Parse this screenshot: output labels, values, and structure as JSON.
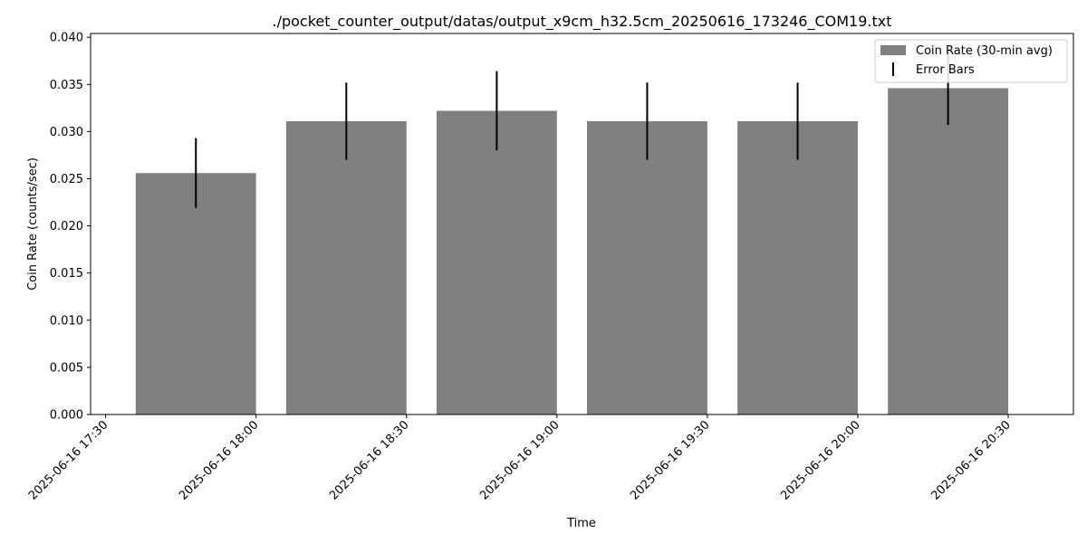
{
  "chart_data": {
    "type": "bar",
    "title": "./pocket_counter_output/datas/output_x9cm_h32.5cm_20250616_173246_COM19.txt",
    "xlabel": "Time",
    "ylabel": "Coin Rate (counts/sec)",
    "ylim": [
      0,
      0.0404
    ],
    "xlim": [
      "2025-06-16 17:27",
      "2025-06-16 20:43"
    ],
    "yticks": [
      "0.000",
      "0.005",
      "0.010",
      "0.015",
      "0.020",
      "0.025",
      "0.030",
      "0.035",
      "0.040"
    ],
    "xticks": [
      "2025-06-16 17:30",
      "2025-06-16 18:00",
      "2025-06-16 18:30",
      "2025-06-16 19:00",
      "2025-06-16 19:30",
      "2025-06-16 20:00",
      "2025-06-16 20:30"
    ],
    "bar_width_minutes": 24,
    "x": [
      "2025-06-16 17:48",
      "2025-06-16 18:18",
      "2025-06-16 18:48",
      "2025-06-16 19:18",
      "2025-06-16 19:48",
      "2025-06-16 20:18"
    ],
    "series": [
      {
        "name": "Coin Rate (30-min avg)",
        "color": "#808080",
        "values": [
          0.0256,
          0.0311,
          0.0322,
          0.0311,
          0.0311,
          0.0346
        ],
        "errors": [
          0.0037,
          0.0041,
          0.0042,
          0.0041,
          0.0041,
          0.0039
        ]
      }
    ],
    "legend": {
      "position": "top-right",
      "entries": [
        "Coin Rate (30-min avg)",
        "Error Bars"
      ]
    },
    "grid": false
  }
}
